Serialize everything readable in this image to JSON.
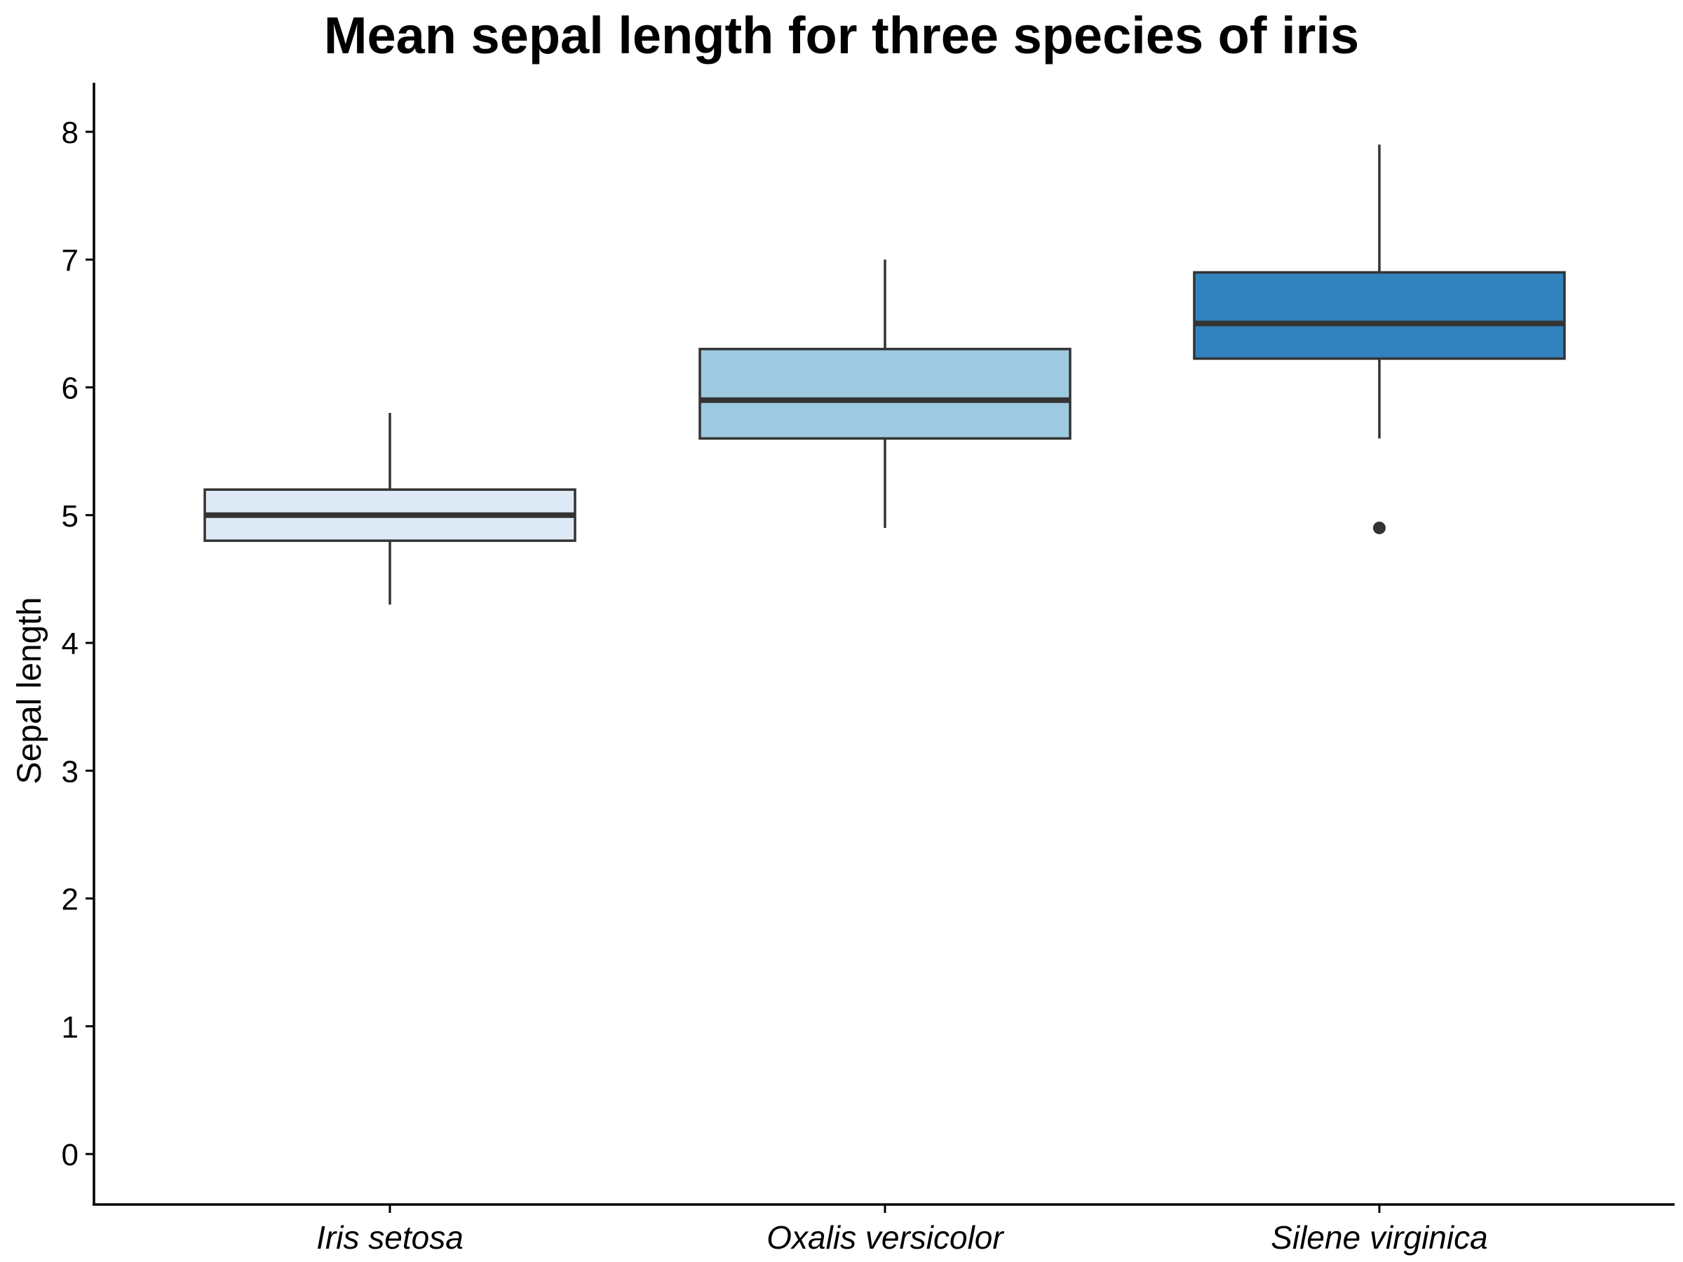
{
  "chart_data": {
    "type": "box",
    "title": "Mean sepal length for three species of iris",
    "xlabel": "",
    "ylabel": "Sepal length",
    "ylim": [
      -0.4,
      8.4
    ],
    "yticks": [
      "0",
      "1",
      "2",
      "3",
      "4",
      "5",
      "6",
      "7",
      "8"
    ],
    "grid": false,
    "legend": "none",
    "categories": [
      "Iris setosa",
      "Oxalis versicolor",
      "Silene virginica"
    ],
    "series": [
      {
        "category": "Iris setosa",
        "whisker_low": 4.3,
        "q1": 4.8,
        "median": 5.0,
        "q3": 5.2,
        "whisker_high": 5.8,
        "outliers": [],
        "fill": "#deebf7"
      },
      {
        "category": "Oxalis versicolor",
        "whisker_low": 4.9,
        "q1": 5.6,
        "median": 5.9,
        "q3": 6.3,
        "whisker_high": 7.0,
        "outliers": [],
        "fill": "#9ecae1"
      },
      {
        "category": "Silene virginica",
        "whisker_low": 5.6,
        "q1": 6.225,
        "median": 6.5,
        "q3": 6.9,
        "whisker_high": 7.9,
        "outliers": [
          4.9
        ],
        "fill": "#3182bd"
      }
    ],
    "colors": {
      "box_stroke": "#333333",
      "axis": "#000000",
      "text": "#000000"
    }
  }
}
